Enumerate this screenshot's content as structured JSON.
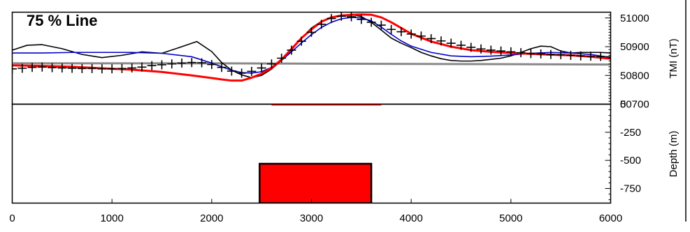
{
  "chart_data": {
    "type": "line",
    "title": "75 % Line",
    "x_axis": {
      "range": [
        0,
        6000
      ],
      "ticks": [
        "0",
        "1000",
        "2000",
        "3000",
        "4000",
        "5000",
        "6000"
      ],
      "tick_values": [
        0,
        1000,
        2000,
        3000,
        4000,
        5000,
        6000
      ]
    },
    "top_panel": {
      "ylabel": "TMI (nT)",
      "ylim": [
        50700,
        51020
      ],
      "ticks": [
        "51000",
        "50900",
        "50800",
        "50700"
      ],
      "tick_values": [
        51000,
        50900,
        50800,
        50700
      ],
      "series": [
        {
          "style": "markers",
          "marker": "plus",
          "color": "#000000",
          "x": [
            0,
            100,
            200,
            300,
            400,
            500,
            600,
            700,
            800,
            900,
            1000,
            1100,
            1200,
            1300,
            1400,
            1500,
            1600,
            1700,
            1800,
            1900,
            2000,
            2100,
            2200,
            2300,
            2400,
            2500,
            2600,
            2700,
            2800,
            2900,
            3000,
            3100,
            3200,
            3300,
            3400,
            3500,
            3600,
            3700,
            3800,
            3900,
            4000,
            4100,
            4200,
            4300,
            4400,
            4500,
            4600,
            4700,
            4800,
            4900,
            5000,
            5100,
            5200,
            5300,
            5400,
            5500,
            5600,
            5700,
            5800,
            5900,
            6000
          ],
          "y": [
            50823,
            50825,
            50828,
            50829,
            50827,
            50826,
            50825,
            50824,
            50824,
            50823,
            50823,
            50824,
            50826,
            50829,
            50834,
            50837,
            50840,
            50843,
            50845,
            50844,
            50838,
            50828,
            50815,
            50808,
            50814,
            50826,
            50840,
            50860,
            50888,
            50919,
            50950,
            50978,
            50998,
            51006,
            51004,
            50995,
            50985,
            50975,
            50960,
            50952,
            50944,
            50937,
            50928,
            50920,
            50912,
            50905,
            50898,
            50892,
            50888,
            50885,
            50882,
            50879,
            50876,
            50875,
            50873,
            50872,
            50870,
            50868,
            50867,
            50866,
            50865
          ]
        },
        {
          "style": "line",
          "color": "#000000",
          "x": [
            0,
            150,
            300,
            500,
            700,
            900,
            1100,
            1300,
            1500,
            1700,
            1850,
            2000,
            2100,
            2200,
            2300,
            2400,
            2500,
            2600,
            2700,
            2800,
            2900,
            3000,
            3100,
            3200,
            3300,
            3400,
            3500,
            3600,
            3700,
            3800,
            3900,
            4000,
            4100,
            4200,
            4300,
            4400,
            4500,
            4600,
            4700,
            4800,
            4900,
            5000,
            5100,
            5200,
            5300,
            5400,
            5500,
            5600,
            5700,
            5800,
            5900,
            6000
          ],
          "y": [
            50888,
            50905,
            50907,
            50893,
            50873,
            50862,
            50870,
            50882,
            50877,
            50900,
            50918,
            50883,
            50845,
            50818,
            50802,
            50792,
            50800,
            50822,
            50852,
            50888,
            50930,
            50965,
            50988,
            51003,
            51010,
            51012,
            51005,
            50985,
            50958,
            50930,
            50912,
            50897,
            50880,
            50868,
            50858,
            50852,
            50850,
            50850,
            50852,
            50856,
            50860,
            50868,
            50880,
            50893,
            50902,
            50900,
            50885,
            50878,
            50880,
            50880,
            50880,
            50878
          ]
        },
        {
          "style": "line",
          "color": "#0000cc",
          "x": [
            0,
            300,
            600,
            900,
            1200,
            1500,
            1800,
            2000,
            2100,
            2200,
            2300,
            2400,
            2500,
            2600,
            2700,
            2800,
            2900,
            3000,
            3100,
            3200,
            3300,
            3400,
            3500,
            3600,
            3700,
            3800,
            3900,
            4000,
            4200,
            4400,
            4600,
            4800,
            5000,
            5200,
            5400,
            5600,
            5800,
            6000
          ],
          "y": [
            50878,
            50878,
            50880,
            50880,
            50880,
            50877,
            50865,
            50843,
            50830,
            50818,
            50810,
            50808,
            50813,
            50828,
            50852,
            50882,
            50913,
            50942,
            50967,
            50985,
            50997,
            51002,
            51000,
            50990,
            50968,
            50943,
            50920,
            50902,
            50880,
            50868,
            50865,
            50867,
            50871,
            50877,
            50880,
            50878,
            50873,
            50862
          ]
        },
        {
          "style": "line",
          "color": "#ff0000",
          "x": [
            0,
            300,
            600,
            900,
            1200,
            1500,
            1800,
            2000,
            2100,
            2200,
            2300,
            2400,
            2500,
            2600,
            2700,
            2800,
            2900,
            3000,
            3100,
            3200,
            3300,
            3400,
            3500,
            3600,
            3700,
            3800,
            3900,
            4000,
            4200,
            4400,
            4600,
            4800,
            5000,
            5200,
            5400,
            5600,
            5800,
            6000
          ],
          "y": [
            50835,
            50833,
            50830,
            50825,
            50820,
            50812,
            50800,
            50791,
            50786,
            50782,
            50782,
            50792,
            50806,
            50826,
            50855,
            50892,
            50930,
            50960,
            50987,
            51002,
            51008,
            51011,
            51012,
            51011,
            51002,
            50985,
            50965,
            50945,
            50918,
            50900,
            50888,
            50882,
            50878,
            50875,
            50872,
            50870,
            50865,
            50858
          ]
        },
        {
          "style": "line",
          "color": "#888888",
          "x": [
            0,
            1000,
            2000,
            3000,
            4000,
            5000,
            6000
          ],
          "y": [
            50842,
            50842,
            50842,
            50841,
            50840,
            50839,
            50838
          ]
        }
      ]
    },
    "bottom_panel": {
      "ylabel": "Depth (m)",
      "ylim": [
        -880,
        0
      ],
      "ticks": [
        "0",
        "-250",
        "-500",
        "-750"
      ],
      "tick_values": [
        0,
        -250,
        -500,
        -750
      ],
      "surface_segment": {
        "x": [
          2600,
          3700
        ],
        "color": "#ff0000"
      },
      "body": {
        "x": [
          2480,
          3600
        ],
        "depth_top": -530,
        "depth_bottom": -880,
        "color": "#ff0000"
      }
    }
  }
}
